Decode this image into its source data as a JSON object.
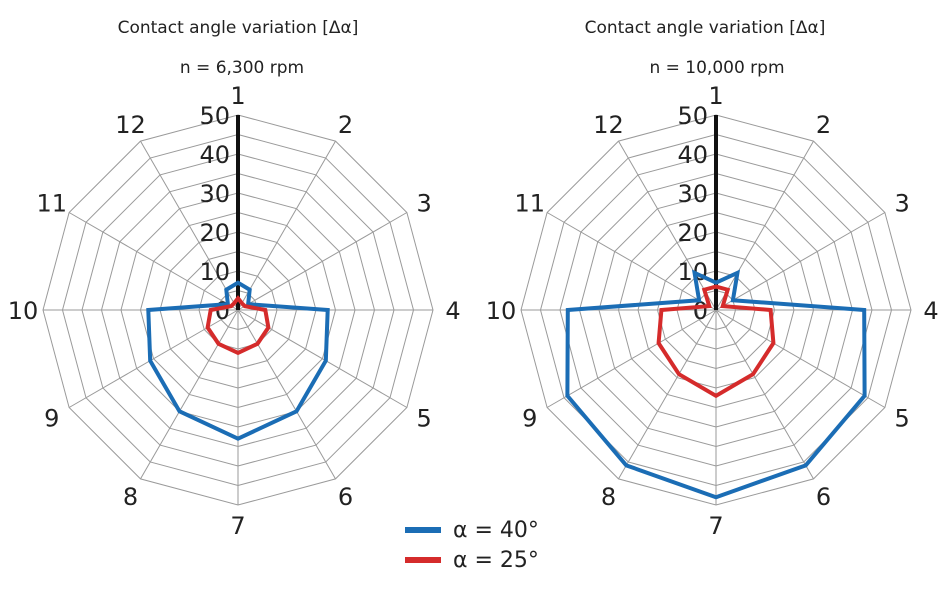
{
  "chart_data": [
    {
      "type": "radar",
      "title": "Contact angle variation [Δα]",
      "subtitle": "n = 6,300 rpm",
      "categories": [
        "1",
        "2",
        "3",
        "4",
        "5",
        "6",
        "7",
        "8",
        "9",
        "10",
        "11",
        "12"
      ],
      "rlim": [
        0,
        50
      ],
      "rticks": [
        0,
        10,
        20,
        30,
        40,
        50
      ],
      "series": [
        {
          "name": "α = 40°",
          "color": "#1b6db5",
          "values": [
            7,
            6,
            3,
            23,
            26,
            30,
            33,
            30,
            26,
            23,
            3,
            6
          ]
        },
        {
          "name": "α = 25°",
          "color": "#d52b2b",
          "values": [
            3,
            2,
            2,
            7,
            9,
            10,
            11,
            10,
            9,
            7,
            2,
            2
          ]
        }
      ]
    },
    {
      "type": "radar",
      "title": "Contact angle variation [Δα]",
      "subtitle": "n = 10,000 rpm",
      "categories": [
        "1",
        "2",
        "3",
        "4",
        "5",
        "6",
        "7",
        "8",
        "9",
        "10",
        "11",
        "12"
      ],
      "rlim": [
        0,
        50
      ],
      "rticks": [
        0,
        10,
        20,
        30,
        40,
        50
      ],
      "series": [
        {
          "name": "α = 40°",
          "color": "#1b6db5",
          "values": [
            7,
            11,
            5,
            38,
            44,
            46,
            48,
            46,
            44,
            38,
            5,
            11
          ]
        },
        {
          "name": "α = 25°",
          "color": "#d52b2b",
          "values": [
            6,
            6,
            2,
            14,
            17,
            19,
            22,
            19,
            17,
            14,
            2,
            6
          ]
        }
      ]
    }
  ],
  "legend": [
    {
      "label": "α = 40°",
      "color": "#1b6db5"
    },
    {
      "label": "α = 25°",
      "color": "#d52b2b"
    }
  ]
}
